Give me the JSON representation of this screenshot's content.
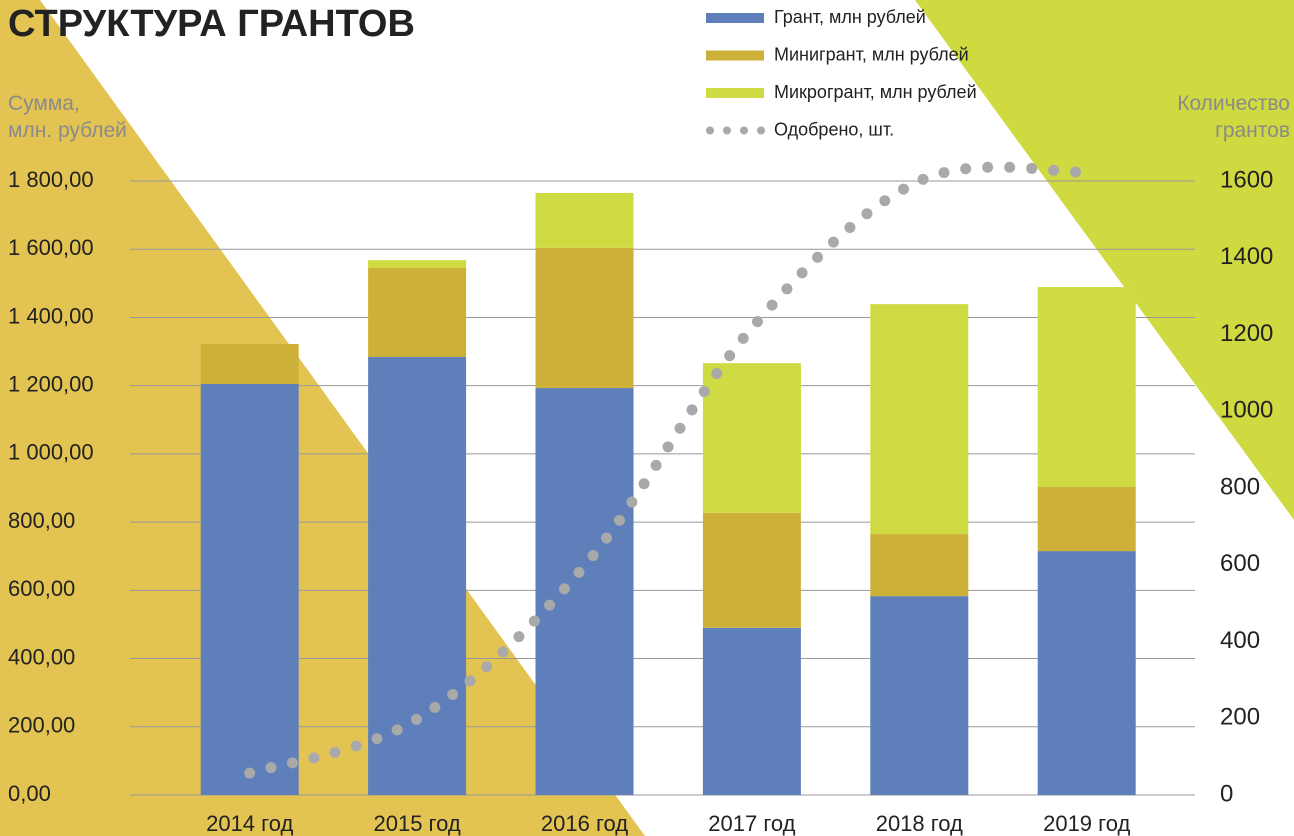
{
  "chart_data": {
    "type": "bar",
    "stacked": true,
    "title": "СТРУКТУРА ГРАНТОВ",
    "y_label": [
      "Сумма,",
      "млн. рублей"
    ],
    "y2_label": [
      "Количество",
      "грантов"
    ],
    "categories": [
      "2014 год",
      "2015 год",
      "2016 год",
      "2017 год",
      "2018 год",
      "2019 год"
    ],
    "series": [
      {
        "name": "Грант, млн рублей",
        "color": "#5e7fba",
        "values": [
          1205,
          1284,
          1193,
          490,
          583,
          715
        ]
      },
      {
        "name": "Минигрант, млн рублей",
        "color": "#cdb037",
        "values": [
          117,
          261,
          411,
          337,
          182,
          188
        ]
      },
      {
        "name": "Микрогрант, млн рублей",
        "color": "#cfdb43",
        "values": [
          0,
          23,
          161,
          439,
          674,
          586
        ]
      },
      {
        "name": "Одобрено, шт.",
        "type": "line",
        "axis": "y2",
        "color": "#a9a9a9",
        "values": [
          57,
          198,
          597,
          1217,
          1600,
          1623
        ]
      }
    ],
    "ylim": [
      0,
      1800
    ],
    "yticks": [
      {
        "value": 0,
        "label": "0,00"
      },
      {
        "value": 200,
        "label": "200,00"
      },
      {
        "value": 400,
        "label": "400,00"
      },
      {
        "value": 600,
        "label": "600,00"
      },
      {
        "value": 800,
        "label": "800,00"
      },
      {
        "value": 1000,
        "label": "1 000,00"
      },
      {
        "value": 1200,
        "label": "1 200,00"
      },
      {
        "value": 1400,
        "label": "1 400,00"
      },
      {
        "value": 1600,
        "label": "1 600,00"
      },
      {
        "value": 1800,
        "label": "1 800,00"
      }
    ],
    "y2lim": [
      0,
      1600
    ],
    "y2ticks": [
      0,
      200,
      400,
      600,
      800,
      1000,
      1200,
      1400,
      1600
    ],
    "grid": true
  }
}
